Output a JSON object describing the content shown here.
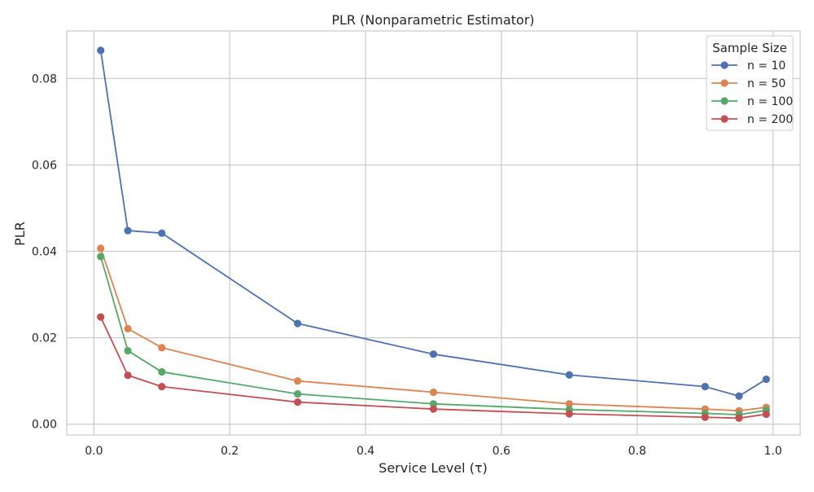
{
  "chart_data": {
    "type": "line",
    "title": "PLR (Nonparametric Estimator)",
    "xlabel": "Service Level (τ)",
    "ylabel": "PLR",
    "xlim": [
      -0.04,
      1.04
    ],
    "ylim": [
      -0.0025,
      0.091
    ],
    "xticks": [
      0.0,
      0.2,
      0.4,
      0.6,
      0.8,
      1.0
    ],
    "xtick_labels": [
      "0.0",
      "0.2",
      "0.4",
      "0.6",
      "0.8",
      "1.0"
    ],
    "yticks": [
      0.0,
      0.02,
      0.04,
      0.06,
      0.08
    ],
    "ytick_labels": [
      "0.00",
      "0.02",
      "0.04",
      "0.06",
      "0.08"
    ],
    "grid": true,
    "legend": {
      "title": "Sample Size",
      "position": "top-right"
    },
    "x": [
      0.01,
      0.05,
      0.1,
      0.3,
      0.5,
      0.7,
      0.9,
      0.95,
      0.99
    ],
    "series": [
      {
        "name": "n = 10",
        "color": "#4c72b0",
        "values": [
          0.0865,
          0.0448,
          0.0442,
          0.0233,
          0.0162,
          0.0114,
          0.0087,
          0.0065,
          0.0104
        ]
      },
      {
        "name": "n = 50",
        "color": "#dd8452",
        "values": [
          0.0407,
          0.0221,
          0.0177,
          0.01,
          0.0074,
          0.0047,
          0.0035,
          0.0031,
          0.0039
        ]
      },
      {
        "name": "n = 100",
        "color": "#55a868",
        "values": [
          0.0388,
          0.017,
          0.0121,
          0.007,
          0.0047,
          0.0034,
          0.0025,
          0.0022,
          0.0032
        ]
      },
      {
        "name": "n = 200",
        "color": "#c44e52",
        "values": [
          0.0248,
          0.0113,
          0.0087,
          0.0051,
          0.0035,
          0.0024,
          0.0016,
          0.0014,
          0.0023
        ]
      }
    ]
  }
}
